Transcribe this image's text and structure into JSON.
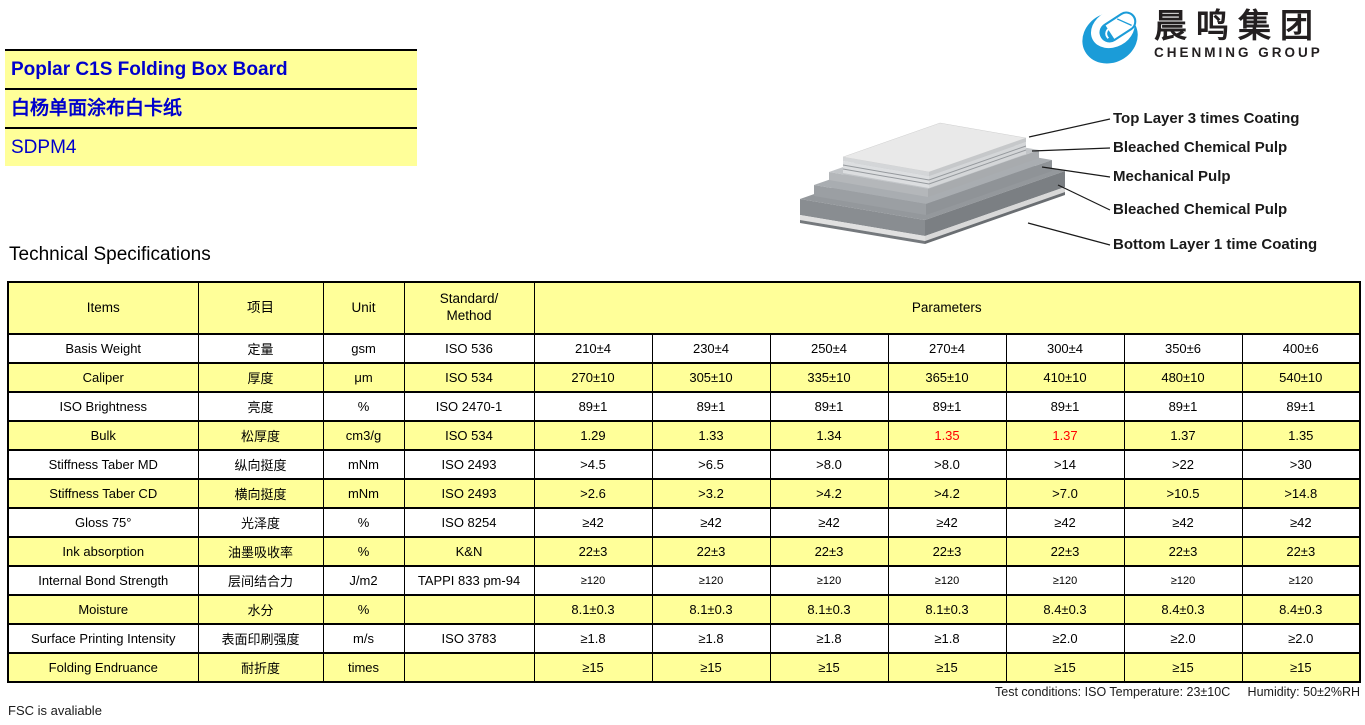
{
  "colors": {
    "highlight_yellow": "#FFFF99",
    "title_blue": "#0000CC",
    "alert_red": "#FF0000",
    "logo_blue": "#1B9CD8"
  },
  "header": {
    "title_en": "Poplar C1S Folding Box Board",
    "title_zh": "白杨单面涂布白卡纸",
    "grade": "SDPM4"
  },
  "logo": {
    "company_zh": "晨鸣集团",
    "company_en": "CHENMING GROUP"
  },
  "diagram": {
    "layer_labels": [
      "Top Layer 3 times Coating",
      "Bleached Chemical Pulp",
      "Mechanical Pulp",
      "Bleached Chemical Pulp",
      "Bottom Layer 1 time Coating"
    ]
  },
  "section_title": "Technical Specifications",
  "table": {
    "header": {
      "items": "Items",
      "item_zh": "项目",
      "unit": "Unit",
      "standard_line1": "Standard/",
      "standard_line2": "Method",
      "parameters": "Parameters"
    },
    "rows": [
      {
        "item": "Basis Weight",
        "zh": "定量",
        "unit": "gsm",
        "standard": "ISO 536",
        "values": [
          "210±4",
          "230±4",
          "250±4",
          "270±4",
          "300±4",
          "350±6",
          "400±6"
        ]
      },
      {
        "item": "Caliper",
        "zh": "厚度",
        "unit": "μm",
        "standard": "ISO 534",
        "values": [
          "270±10",
          "305±10",
          "335±10",
          "365±10",
          "410±10",
          "480±10",
          "540±10"
        ]
      },
      {
        "item": "ISO Brightness",
        "zh": "亮度",
        "unit": "%",
        "standard": "ISO 2470-1",
        "values": [
          "89±1",
          "89±1",
          "89±1",
          "89±1",
          "89±1",
          "89±1",
          "89±1"
        ]
      },
      {
        "item": "Bulk",
        "zh": "松厚度",
        "unit": "cm3/g",
        "standard": "ISO 534",
        "values": [
          "1.29",
          "1.33",
          "1.34",
          "1.35",
          "1.37",
          "1.37",
          "1.35"
        ],
        "red_indices": [
          3,
          4
        ]
      },
      {
        "item": "Stiffness Taber MD",
        "zh": "纵向挺度",
        "unit": "mNm",
        "standard": "ISO 2493",
        "values": [
          ">4.5",
          ">6.5",
          ">8.0",
          ">8.0",
          ">14",
          ">22",
          ">30"
        ]
      },
      {
        "item": "Stiffness Taber CD",
        "zh": "横向挺度",
        "unit": "mNm",
        "standard": "ISO 2493",
        "values": [
          ">2.6",
          ">3.2",
          ">4.2",
          ">4.2",
          ">7.0",
          ">10.5",
          ">14.8"
        ]
      },
      {
        "item": "Gloss 75°",
        "zh": "光泽度",
        "unit": "%",
        "standard": "ISO 8254",
        "values": [
          "≥42",
          "≥42",
          "≥42",
          "≥42",
          "≥42",
          "≥42",
          "≥42"
        ]
      },
      {
        "item": "Ink absorption",
        "zh": "油墨吸收率",
        "unit": "%",
        "standard": "K&N",
        "values": [
          "22±3",
          "22±3",
          "22±3",
          "22±3",
          "22±3",
          "22±3",
          "22±3"
        ]
      },
      {
        "item": "Internal Bond Strength",
        "zh": "层间结合力",
        "unit": "J/m2",
        "standard": "TAPPI 833 pm-94",
        "values": [
          "≥120",
          "≥120",
          "≥120",
          "≥120",
          "≥120",
          "≥120",
          "≥120"
        ],
        "small_values": true
      },
      {
        "item": "Moisture",
        "zh": "水分",
        "unit": "%",
        "standard": "",
        "values": [
          "8.1±0.3",
          "8.1±0.3",
          "8.1±0.3",
          "8.1±0.3",
          "8.4±0.3",
          "8.4±0.3",
          "8.4±0.3"
        ]
      },
      {
        "item": "Surface Printing Intensity",
        "zh": "表面印刷强度",
        "unit": "m/s",
        "standard": "ISO 3783",
        "values": [
          "≥1.8",
          "≥1.8",
          "≥1.8",
          "≥1.8",
          "≥2.0",
          "≥2.0",
          "≥2.0"
        ]
      },
      {
        "item": "Folding Endruance",
        "zh": "耐折度",
        "unit": "times",
        "standard": "",
        "values": [
          "≥15",
          "≥15",
          "≥15",
          "≥15",
          "≥15",
          "≥15",
          "≥15"
        ]
      }
    ]
  },
  "footer": {
    "test_conditions": "Test conditions: ISO Temperature: 23±10C",
    "humidity": "Humidity: 50±2%RH",
    "fsc_note": "FSC is avaliable"
  }
}
